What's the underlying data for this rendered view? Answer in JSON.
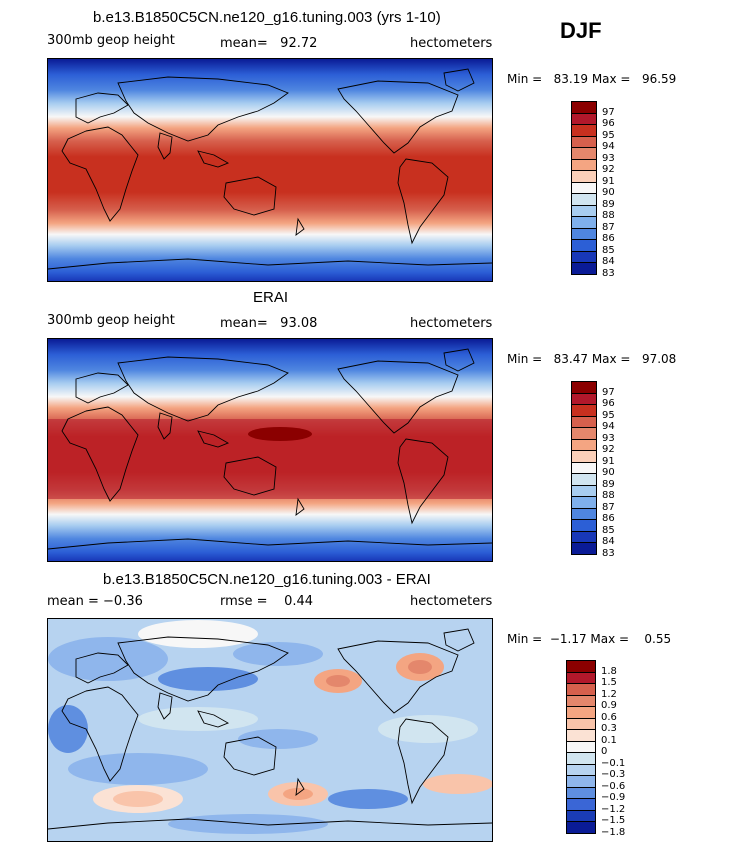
{
  "season": "DJF",
  "panels": [
    {
      "id": "model",
      "title": "b.e13.B1850C5CN.ne120_g16.tuning.003 (yrs 1-10)",
      "left": "300mb geop height",
      "center_label": "mean=",
      "center_value": "92.72",
      "units": "hectometers",
      "min_label": "Min =",
      "min_value": "83.19",
      "max_label": "Max =",
      "max_value": "96.59",
      "colorbar_labels": [
        "97",
        "96",
        "95",
        "94",
        "93",
        "92",
        "91",
        "90",
        "89",
        "88",
        "87",
        "86",
        "85",
        "84",
        "83"
      ],
      "warm_pool_intensity": 0.0
    },
    {
      "id": "obs",
      "title": "ERAI",
      "left": "300mb geop height",
      "center_label": "mean=",
      "center_value": "93.08",
      "units": "hectometers",
      "min_label": "Min =",
      "min_value": "83.47",
      "max_label": "Max =",
      "max_value": "97.08",
      "colorbar_labels": [
        "97",
        "96",
        "95",
        "94",
        "93",
        "92",
        "91",
        "90",
        "89",
        "88",
        "87",
        "86",
        "85",
        "84",
        "83"
      ],
      "warm_pool_intensity": 1.0
    },
    {
      "id": "diff",
      "title": "b.e13.B1850C5CN.ne120_g16.tuning.003 - ERAI",
      "left": "mean =   −0.36",
      "center_label": "rmse =",
      "center_value": "0.44",
      "units": "hectometers",
      "min_label": "Min =",
      "min_value": "−1.17",
      "max_label": "Max =",
      "max_value": "0.55",
      "colorbar_labels": [
        "1.8",
        "1.5",
        "1.2",
        "0.9",
        "0.6",
        "0.3",
        "0.1",
        "0",
        "−0.1",
        "−0.3",
        "−0.6",
        "−0.9",
        "−1.2",
        "−1.5",
        "−1.8"
      ]
    }
  ],
  "colors": {
    "field_scale": [
      "#8b0000",
      "#b2182b",
      "#c8301f",
      "#d6604d",
      "#e4876c",
      "#f4a582",
      "#fbd0b9",
      "#f7f7f7",
      "#d1e5f0",
      "#a8cdf0",
      "#7fb0ec",
      "#4f86e0",
      "#2c5fd6",
      "#1838b8",
      "#0a1b96"
    ],
    "diff_scale": [
      "#8b0000",
      "#b2182b",
      "#d6604d",
      "#e4876c",
      "#f4a582",
      "#f9c4aa",
      "#fbe2d4",
      "#f7f7f7",
      "#d1e5f0",
      "#b7d3f0",
      "#8fb6ec",
      "#5f8fe0",
      "#3a66d6",
      "#1a3cb6",
      "#0a1b96"
    ]
  }
}
